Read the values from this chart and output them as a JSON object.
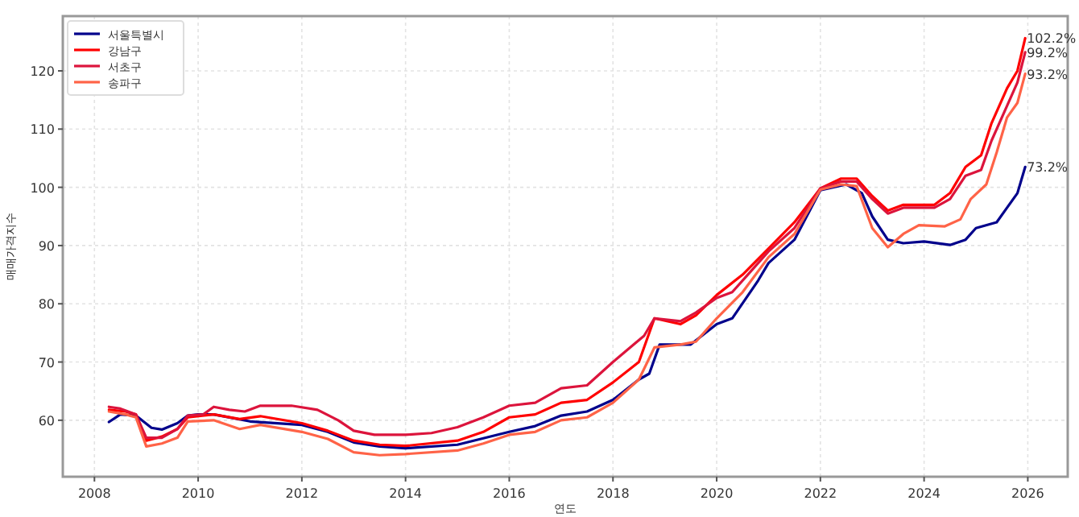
{
  "chart_data": {
    "type": "line",
    "xlabel": "연도",
    "ylabel": "매매가격지수",
    "xlim": [
      2007.39,
      2026.77
    ],
    "ylim": [
      50.3,
      129.4
    ],
    "xticks": [
      2008,
      2010,
      2012,
      2014,
      2016,
      2018,
      2020,
      2022,
      2024,
      2026
    ],
    "yticks": [
      60,
      70,
      80,
      90,
      100,
      110,
      120
    ],
    "grid": true,
    "legend": "top left",
    "line_style": "solid",
    "marker": "none",
    "series": [
      {
        "name": "서울특별시",
        "color": "#00008b",
        "x": [
          2008.28,
          2008.5,
          2008.8,
          2009.1,
          2009.3,
          2009.6,
          2009.8,
          2010,
          2010.3,
          2011,
          2012,
          2012.5,
          2013,
          2013.5,
          2014,
          2015,
          2016,
          2016.5,
          2017,
          2017.5,
          2018,
          2018.5,
          2018.7,
          2018.9,
          2019.5,
          2020,
          2020.3,
          2020.8,
          2021,
          2021.5,
          2022,
          2022.5,
          2022.8,
          2023,
          2023.3,
          2023.6,
          2024,
          2024.5,
          2024.8,
          2025,
          2025.4,
          2025.6,
          2025.8,
          2025.95
        ],
        "values": [
          59.7,
          61,
          60.8,
          58.7,
          58.4,
          59.5,
          60.8,
          61,
          61,
          59.8,
          59.2,
          58,
          56.2,
          55.5,
          55.2,
          55.8,
          58,
          59,
          60.8,
          61.5,
          63.5,
          67,
          68,
          73,
          73,
          76.5,
          77.5,
          84,
          87,
          91,
          99.5,
          100.5,
          99,
          95,
          91,
          90.4,
          90.7,
          90.1,
          91,
          93,
          94,
          96.5,
          99,
          103.5
        ]
      },
      {
        "name": "강남구",
        "color": "#ff0000",
        "x": [
          2008.28,
          2008.6,
          2008.8,
          2009,
          2009.3,
          2009.6,
          2009.8,
          2010.3,
          2010.8,
          2011.2,
          2012,
          2012.5,
          2013,
          2013.5,
          2014,
          2015,
          2015.5,
          2016,
          2016.5,
          2017,
          2017.5,
          2018,
          2018.5,
          2018.8,
          2019.3,
          2019.6,
          2020,
          2020.5,
          2021,
          2021.5,
          2022,
          2022.4,
          2022.7,
          2023,
          2023.3,
          2023.6,
          2024.2,
          2024.5,
          2024.8,
          2025.1,
          2025.3,
          2025.6,
          2025.8,
          2025.95
        ],
        "values": [
          61.8,
          61.5,
          61,
          56.5,
          57.2,
          58.5,
          60.5,
          61,
          60.2,
          60.7,
          59.5,
          58.2,
          56.5,
          55.8,
          55.6,
          56.5,
          58,
          60.5,
          61,
          63,
          63.5,
          66.5,
          70,
          77.5,
          76.5,
          78,
          81.5,
          85,
          89.5,
          94,
          99.8,
          101.5,
          101.5,
          98.5,
          96,
          97,
          97,
          99,
          103.5,
          105.5,
          111,
          117,
          120,
          125.6
        ]
      },
      {
        "name": "서초구",
        "color": "#dc143c",
        "x": [
          2008.28,
          2008.5,
          2008.8,
          2009,
          2009.3,
          2009.6,
          2009.8,
          2010.1,
          2010.3,
          2010.6,
          2010.9,
          2011.2,
          2011.8,
          2012.3,
          2012.7,
          2013,
          2013.4,
          2014,
          2014.5,
          2015,
          2015.5,
          2016,
          2016.5,
          2017,
          2017.5,
          2018,
          2018.4,
          2018.6,
          2018.8,
          2019.3,
          2019.6,
          2020,
          2020.3,
          2020.6,
          2021,
          2021.5,
          2022,
          2022.4,
          2022.7,
          2023,
          2023.3,
          2023.6,
          2024.2,
          2024.5,
          2024.8,
          2025.1,
          2025.3,
          2025.6,
          2025.8,
          2025.95
        ],
        "values": [
          62.3,
          62,
          61,
          57,
          57,
          58.5,
          60.8,
          61,
          62.3,
          61.8,
          61.5,
          62.5,
          62.5,
          61.8,
          60,
          58.2,
          57.5,
          57.5,
          57.8,
          58.8,
          60.5,
          62.5,
          63,
          65.5,
          66,
          70,
          73,
          74.5,
          77.5,
          77,
          78.5,
          81,
          82,
          85,
          89,
          93,
          99.8,
          101,
          101,
          98,
          95.5,
          96.5,
          96.5,
          98,
          102,
          103,
          108,
          114,
          118,
          123.2
        ]
      },
      {
        "name": "송파구",
        "color": "#ff6347",
        "x": [
          2008.28,
          2008.6,
          2008.8,
          2009,
          2009.3,
          2009.6,
          2009.8,
          2010.3,
          2010.8,
          2011.2,
          2012,
          2012.5,
          2013,
          2013.5,
          2014,
          2015,
          2015.5,
          2016,
          2016.5,
          2017,
          2017.5,
          2018,
          2018.5,
          2018.8,
          2019.3,
          2019.6,
          2020,
          2020.5,
          2021,
          2021.5,
          2022,
          2022.4,
          2022.7,
          2023,
          2023.3,
          2023.6,
          2023.9,
          2024.4,
          2024.7,
          2024.9,
          2025.2,
          2025.4,
          2025.6,
          2025.8,
          2025.95
        ],
        "values": [
          61.5,
          61,
          60.5,
          55.5,
          56,
          57,
          59.8,
          60,
          58.5,
          59.2,
          58,
          56.8,
          54.5,
          54,
          54.2,
          54.8,
          56,
          57.5,
          58,
          60,
          60.5,
          63,
          67,
          72.5,
          73,
          73.5,
          77.5,
          82,
          88,
          92,
          99.6,
          100.5,
          100.2,
          93,
          89.7,
          92,
          93.5,
          93.3,
          94.5,
          98,
          100.5,
          106,
          112,
          114.5,
          119.5
        ]
      }
    ],
    "annotations": [
      "102.2%",
      "99.2%",
      "93.2%",
      "73.2%"
    ]
  }
}
